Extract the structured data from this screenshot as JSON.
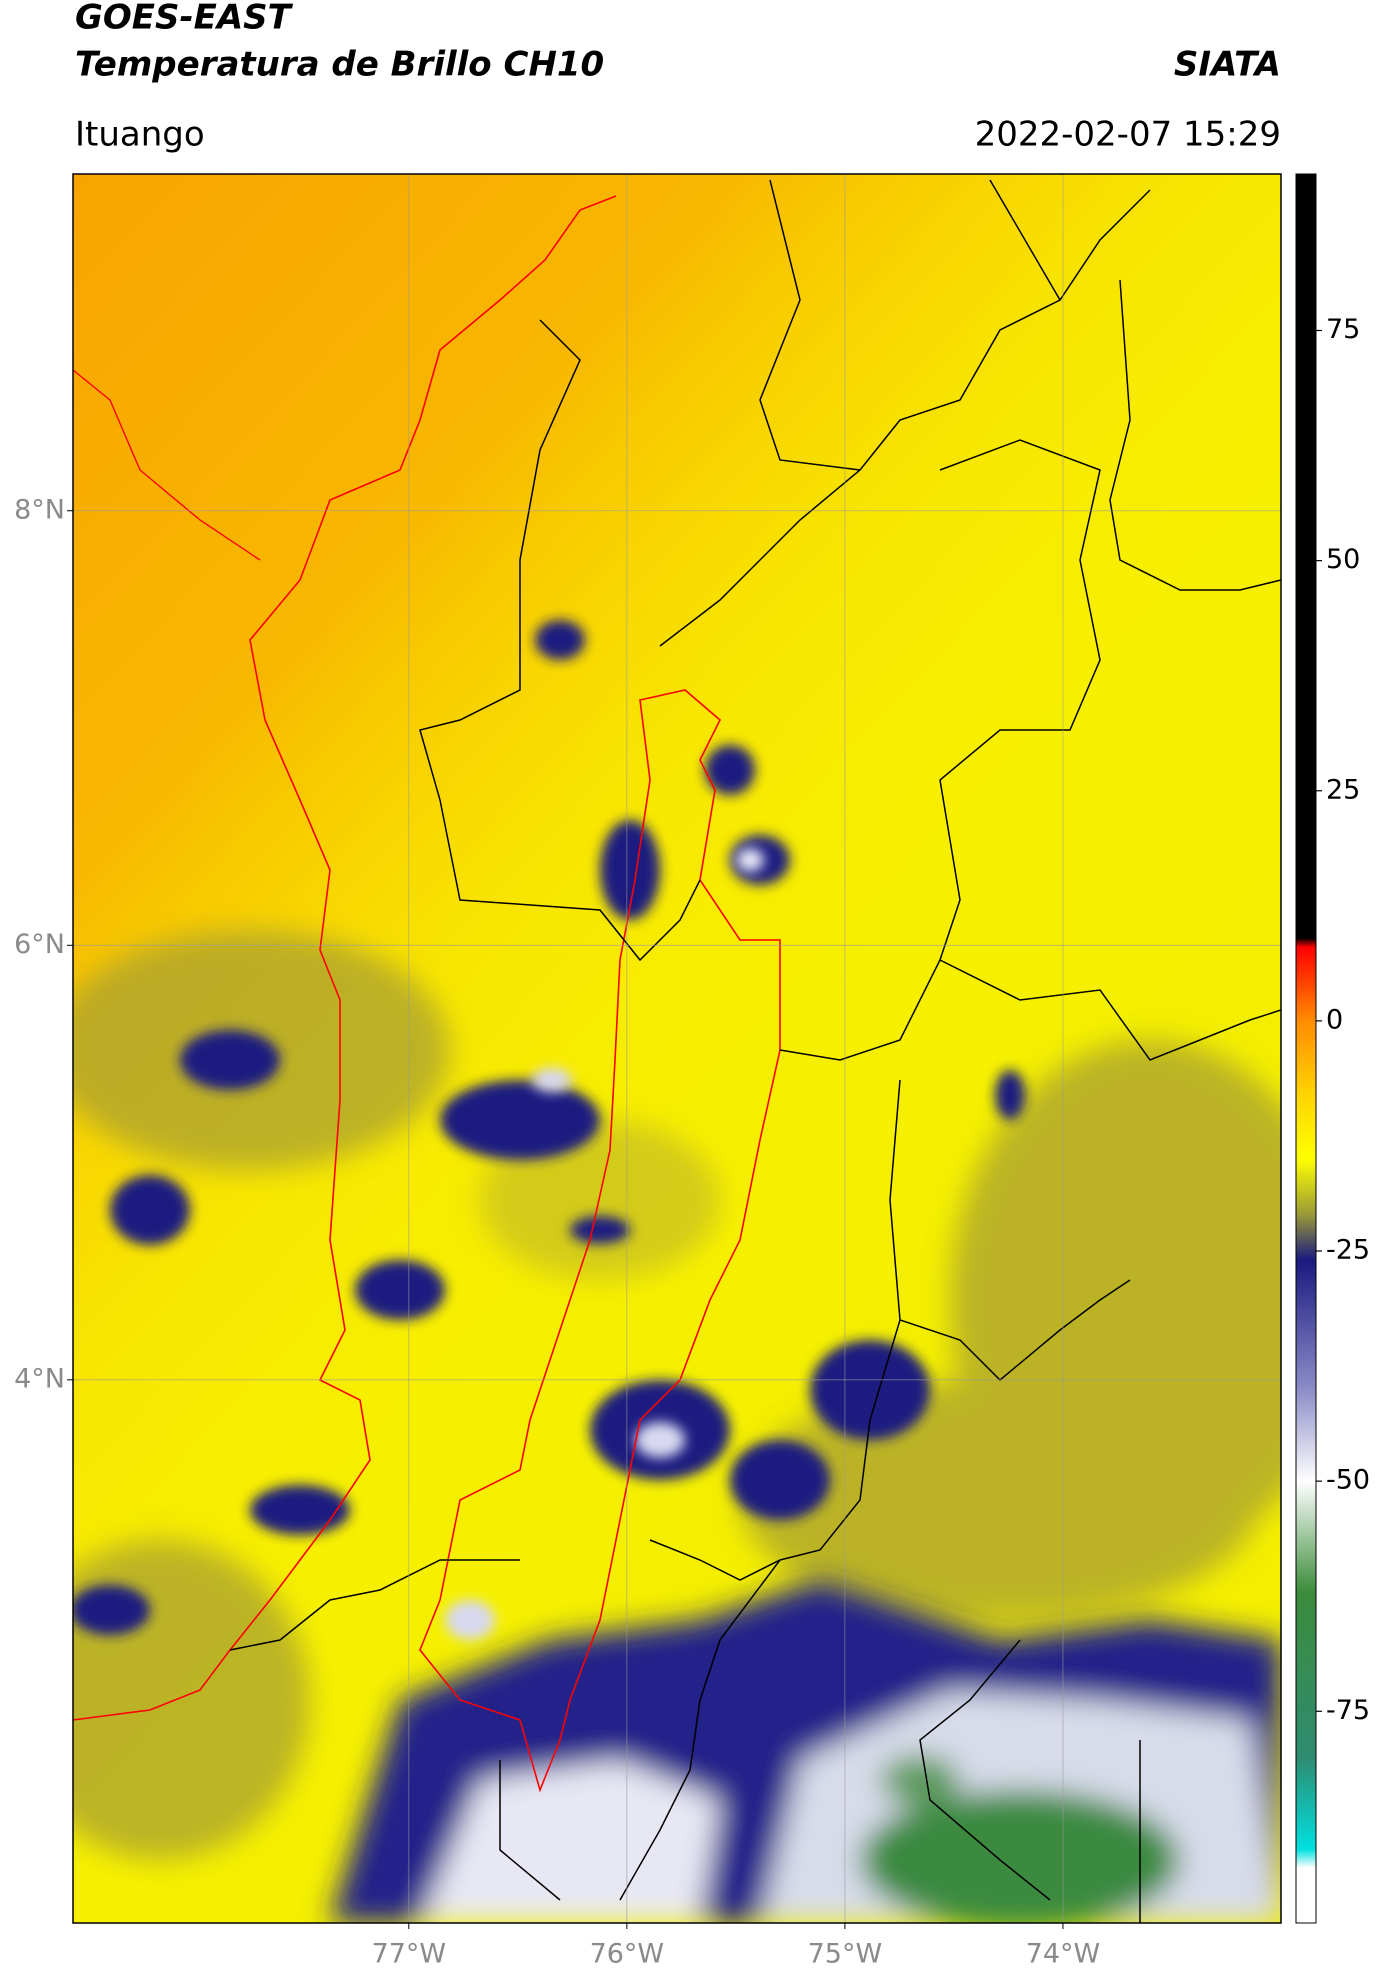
{
  "chart_data": {
    "type": "map",
    "title": "GOES-EAST",
    "subtitle": "Temperatura de Brillo CH10",
    "source": "SIATA",
    "location": "Ituango",
    "timestamp": "2022-02-07 15:29",
    "xlim": [
      -78.54,
      -73.0
    ],
    "ylim": [
      1.5,
      9.55
    ],
    "xticks": [
      {
        "value": -77,
        "label": "77°W"
      },
      {
        "value": -76,
        "label": "76°W"
      },
      {
        "value": -75,
        "label": "75°W"
      },
      {
        "value": -74,
        "label": "74°W"
      }
    ],
    "yticks": [
      {
        "value": 8,
        "label": "8°N"
      },
      {
        "value": 6,
        "label": "6°N"
      },
      {
        "value": 4,
        "label": "4°N"
      }
    ],
    "grid": true,
    "colorbar": {
      "clim": [
        -98,
        92
      ],
      "ticks": [
        75,
        50,
        25,
        0,
        -25,
        -50,
        -75
      ],
      "colormap": [
        {
          "value": 92,
          "color": "#000000"
        },
        {
          "value": 9,
          "color": "#000000"
        },
        {
          "value": 8,
          "color": "#ff0000"
        },
        {
          "value": 0,
          "color": "#ff8c00"
        },
        {
          "value": -8,
          "color": "#ffd400"
        },
        {
          "value": -15,
          "color": "#ffff00"
        },
        {
          "value": -21,
          "color": "#9a9a38"
        },
        {
          "value": -26,
          "color": "#1a1a80"
        },
        {
          "value": -40,
          "color": "#8c8cc8"
        },
        {
          "value": -50,
          "color": "#ffffff"
        },
        {
          "value": -62,
          "color": "#3c8c3c"
        },
        {
          "value": -80,
          "color": "#2e8b70"
        },
        {
          "value": -90,
          "color": "#00e0e0"
        },
        {
          "value": -92,
          "color": "#ffffff"
        },
        {
          "value": -98,
          "color": "#ffffff"
        }
      ]
    }
  }
}
